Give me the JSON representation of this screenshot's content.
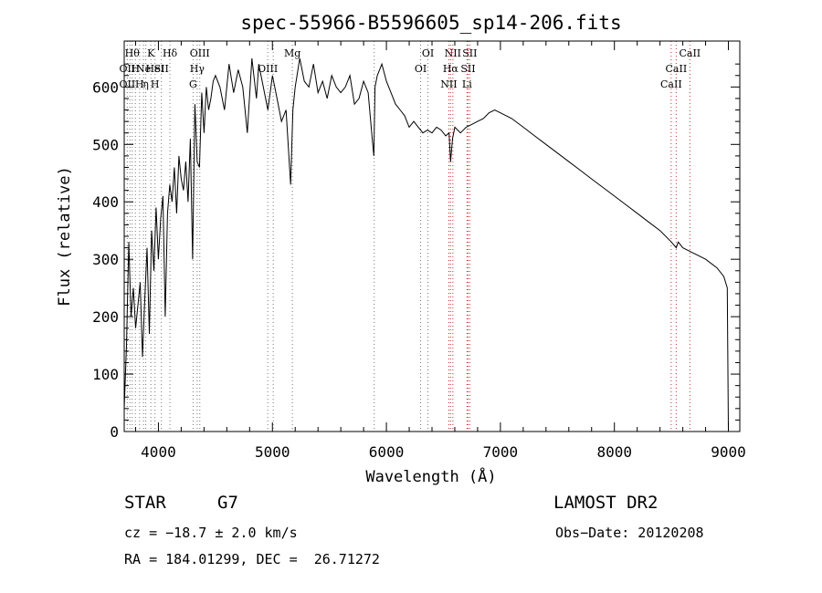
{
  "chart_data": {
    "type": "line",
    "title": "spec-55966-B5596605_sp14-206.fits",
    "xlabel": "Wavelength (Å)",
    "ylabel": "Flux (relative)",
    "xlim": [
      3700,
      9100
    ],
    "ylim": [
      0,
      680
    ],
    "xticks": [
      4000,
      5000,
      6000,
      7000,
      8000,
      9000
    ],
    "yticks": [
      0,
      100,
      200,
      300,
      400,
      500,
      600
    ],
    "grid": false,
    "series": [
      {
        "values_x": [
          3700,
          3720,
          3740,
          3760,
          3780,
          3800,
          3820,
          3840,
          3860,
          3880,
          3900,
          3920,
          3940,
          3960,
          3980,
          4000,
          4020,
          4040,
          4060,
          4080,
          4100,
          4120,
          4140,
          4160,
          4180,
          4200,
          4220,
          4240,
          4260,
          4280,
          4300,
          4320,
          4340,
          4360,
          4380,
          4400,
          4420,
          4440,
          4460,
          4480,
          4500,
          4540,
          4580,
          4620,
          4660,
          4700,
          4740,
          4780,
          4820,
          4860,
          4880,
          4920,
          4960,
          5000,
          5040,
          5080,
          5120,
          5160,
          5180,
          5200,
          5240,
          5280,
          5320,
          5360,
          5400,
          5440,
          5480,
          5520,
          5560,
          5600,
          5640,
          5680,
          5720,
          5760,
          5800,
          5840,
          5880,
          5890,
          5900,
          5920,
          5960,
          6000,
          6040,
          6080,
          6120,
          6160,
          6200,
          6240,
          6280,
          6320,
          6360,
          6400,
          6440,
          6480,
          6520,
          6550,
          6563,
          6580,
          6600,
          6650,
          6700,
          6750,
          6800,
          6850,
          6900,
          6950,
          7000,
          7100,
          7200,
          7300,
          7400,
          7500,
          7600,
          7700,
          7800,
          7900,
          8000,
          8100,
          8200,
          8300,
          8400,
          8500,
          8542,
          8560,
          8600,
          8700,
          8800,
          8900,
          8960,
          8990,
          9000
        ],
        "values_y": [
          40,
          150,
          330,
          200,
          250,
          180,
          220,
          260,
          130,
          230,
          320,
          170,
          350,
          280,
          390,
          300,
          370,
          410,
          200,
          380,
          430,
          400,
          460,
          380,
          480,
          440,
          420,
          470,
          400,
          510,
          300,
          570,
          470,
          460,
          590,
          520,
          600,
          560,
          580,
          610,
          620,
          600,
          560,
          640,
          590,
          630,
          600,
          520,
          650,
          580,
          640,
          600,
          560,
          620,
          580,
          540,
          560,
          430,
          560,
          600,
          650,
          610,
          600,
          640,
          590,
          610,
          580,
          620,
          600,
          590,
          600,
          620,
          570,
          580,
          610,
          590,
          500,
          480,
          600,
          620,
          640,
          610,
          590,
          570,
          560,
          550,
          530,
          540,
          530,
          520,
          525,
          520,
          530,
          525,
          515,
          520,
          470,
          510,
          530,
          520,
          530,
          535,
          540,
          545,
          555,
          560,
          555,
          545,
          530,
          515,
          500,
          485,
          470,
          455,
          440,
          425,
          410,
          395,
          380,
          365,
          350,
          330,
          320,
          330,
          320,
          310,
          300,
          285,
          270,
          250,
          0
        ]
      }
    ],
    "line_labels": [
      {
        "wl": 3727,
        "col": 0,
        "row": 1,
        "text": "OII"
      },
      {
        "wl": 3727,
        "col": 0,
        "row": 2,
        "text": "OII"
      },
      {
        "wl": 3770,
        "col": 0,
        "row": 0,
        "text": "Hθ"
      },
      {
        "wl": 3798,
        "col": 0,
        "row": 1,
        "text": "H"
      },
      {
        "wl": 3835,
        "col": 0,
        "row": 2,
        "text": "H"
      },
      {
        "wl": 3869,
        "col": 0,
        "row": 1,
        "text": "Ne"
      },
      {
        "wl": 3889,
        "col": 0,
        "row": 2,
        "text": "η"
      },
      {
        "wl": 3934,
        "col": 0,
        "row": 0,
        "text": "K"
      },
      {
        "wl": 3970,
        "col": 0,
        "row": 2,
        "text": "H"
      },
      {
        "wl": 3970,
        "col": 0,
        "row": 1,
        "text": "HeI"
      },
      {
        "wl": 4026,
        "col": 0,
        "row": 1,
        "text": "SII"
      },
      {
        "wl": 4101,
        "col": 0,
        "row": 0,
        "text": "Hδ"
      },
      {
        "wl": 4304,
        "col": 0,
        "row": 2,
        "text": "G"
      },
      {
        "wl": 4340,
        "col": 0,
        "row": 1,
        "text": "Hγ"
      },
      {
        "wl": 4363,
        "col": 0,
        "row": 0,
        "text": "OIII"
      },
      {
        "wl": 4959,
        "col": 0,
        "row": 1,
        "text": "OIII"
      },
      {
        "wl": 5175,
        "col": 0,
        "row": 0,
        "text": "Mg"
      },
      {
        "wl": 6300,
        "col": 0,
        "row": 1,
        "text": "OI"
      },
      {
        "wl": 6364,
        "col": 0,
        "row": 0,
        "text": "OI"
      },
      {
        "wl": 6548,
        "col": 0,
        "row": 2,
        "text": "NII"
      },
      {
        "wl": 6563,
        "col": 0,
        "row": 1,
        "text": "Hα"
      },
      {
        "wl": 6583,
        "col": 0,
        "row": 0,
        "text": "NII"
      },
      {
        "wl": 6707,
        "col": 0,
        "row": 2,
        "text": "Li"
      },
      {
        "wl": 6716,
        "col": 0,
        "row": 1,
        "text": "SII"
      },
      {
        "wl": 6731,
        "col": 0,
        "row": 0,
        "text": "SII"
      },
      {
        "wl": 8498,
        "col": 0,
        "row": 2,
        "text": "CaII"
      },
      {
        "wl": 8542,
        "col": 0,
        "row": 1,
        "text": "CaII"
      },
      {
        "wl": 8662,
        "col": 0,
        "row": 0,
        "text": "CaII"
      }
    ],
    "marker_lines": [
      3727,
      3750,
      3770,
      3798,
      3835,
      3869,
      3889,
      3934,
      3970,
      4026,
      4101,
      4304,
      4340,
      4363,
      4959,
      5007,
      5175,
      5893,
      6300,
      6364,
      6548,
      6563,
      6583,
      6707,
      6716,
      6731,
      8498,
      8542,
      8662
    ]
  },
  "info": {
    "object_type": "STAR",
    "subclass": "G7",
    "survey": "LAMOST DR2",
    "velocity": "cz = −18.7 ± 2.0 km/s",
    "obs_date": "Obs−Date: 20120208",
    "coords": "RA = 184.01299, DEC =  26.71272"
  }
}
